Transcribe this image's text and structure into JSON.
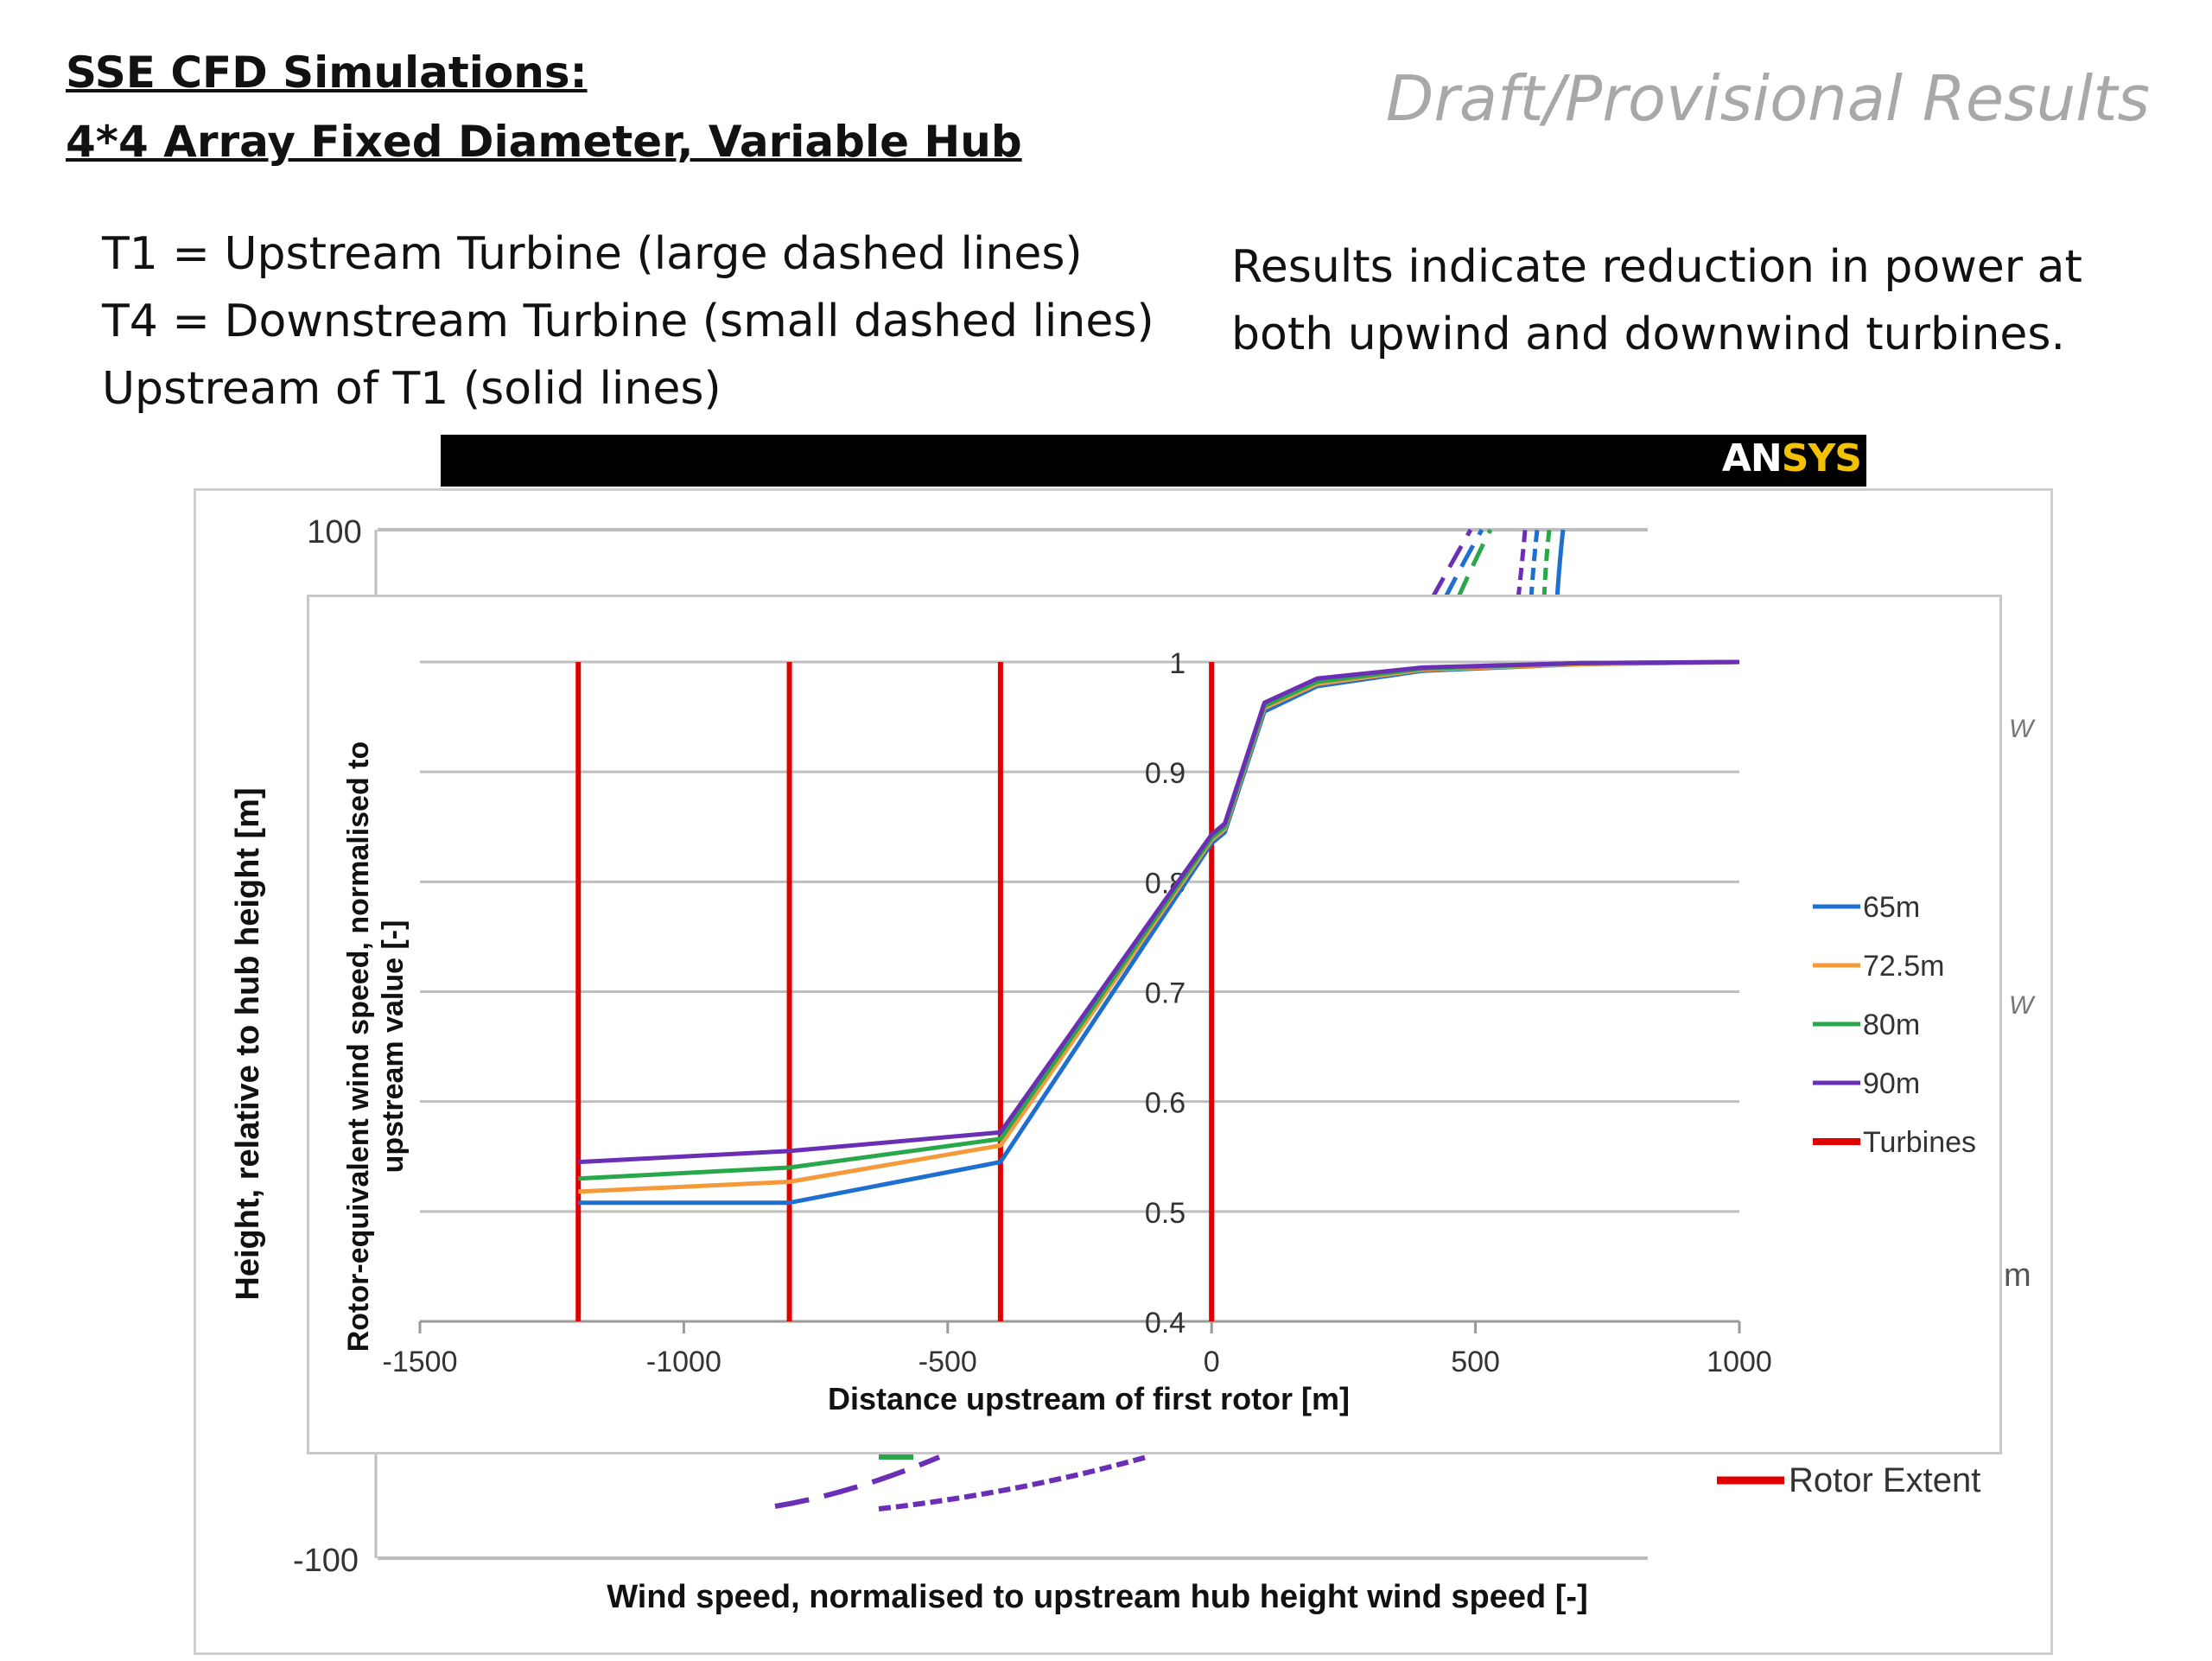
{
  "slide": {
    "title_line1": "SSE CFD Simulations:",
    "title_line2": "4*4 Array Fixed Diameter, Variable Hub",
    "draft_label": "Draft/Provisional Results",
    "notes": [
      "T1 = Upstream Turbine (large dashed lines)",
      "T4 = Downstream Turbine (small dashed lines)",
      "Upstream of T1 (solid lines)"
    ],
    "results": [
      "Results indicate reduction in power at",
      "both upwind and downwind turbines."
    ],
    "logo_text": "ANSYS"
  },
  "background_chart": {
    "ylabel": "Height, relative to hub height [m]",
    "xlabel": "Wind speed, normalised to upstream hub height wind speed  [-]",
    "y_tick_top": "100",
    "y_tick_bottom": "-100",
    "legend_partial": [
      "W",
      "W",
      "m"
    ],
    "legend_rotor": "Rotor Extent",
    "rotor_color": "#e00000",
    "series_colors": [
      "#1f6fd1",
      "#f59a3a",
      "#28a84a",
      "#6a2fb5"
    ]
  },
  "chart_data": {
    "type": "line",
    "title": "",
    "xlabel": "Distance upstream of first rotor  [m]",
    "ylabel": "Rotor-equivalent wind speed, normalised to upstream value [-]",
    "xlim": [
      -1500,
      1000
    ],
    "ylim": [
      0.4,
      1.0
    ],
    "x_ticks": [
      "-1500",
      "-1000",
      "-500",
      "0",
      "500",
      "1000"
    ],
    "y_ticks": [
      "0.4",
      "0.5",
      "0.6",
      "0.7",
      "0.8",
      "0.9",
      "1"
    ],
    "grid": true,
    "legend_position": "right",
    "series": [
      {
        "name": "65m",
        "color": "#1f6fd1",
        "x": [
          -1200,
          -800,
          -400,
          0,
          25,
          100,
          200,
          400,
          700,
          1000
        ],
        "y": [
          0.508,
          0.508,
          0.545,
          0.835,
          0.845,
          0.955,
          0.978,
          0.992,
          0.998,
          1.0
        ]
      },
      {
        "name": "72.5m",
        "color": "#f59a3a",
        "x": [
          -1200,
          -800,
          -400,
          0,
          25,
          100,
          200,
          400,
          700,
          1000
        ],
        "y": [
          0.518,
          0.527,
          0.56,
          0.838,
          0.848,
          0.958,
          0.98,
          0.993,
          0.998,
          1.0
        ]
      },
      {
        "name": "80m",
        "color": "#28a84a",
        "x": [
          -1200,
          -800,
          -400,
          0,
          25,
          100,
          200,
          400,
          700,
          1000
        ],
        "y": [
          0.53,
          0.54,
          0.566,
          0.84,
          0.85,
          0.96,
          0.982,
          0.994,
          0.999,
          1.0
        ]
      },
      {
        "name": "90m",
        "color": "#6a2fb5",
        "x": [
          -1200,
          -800,
          -400,
          0,
          25,
          100,
          200,
          400,
          700,
          1000
        ],
        "y": [
          0.545,
          0.555,
          0.572,
          0.843,
          0.853,
          0.963,
          0.985,
          0.995,
          0.999,
          1.0
        ]
      }
    ],
    "turbines": {
      "name": "Turbines",
      "color": "#e00000",
      "x": [
        -1200,
        -800,
        -400,
        0
      ]
    }
  }
}
